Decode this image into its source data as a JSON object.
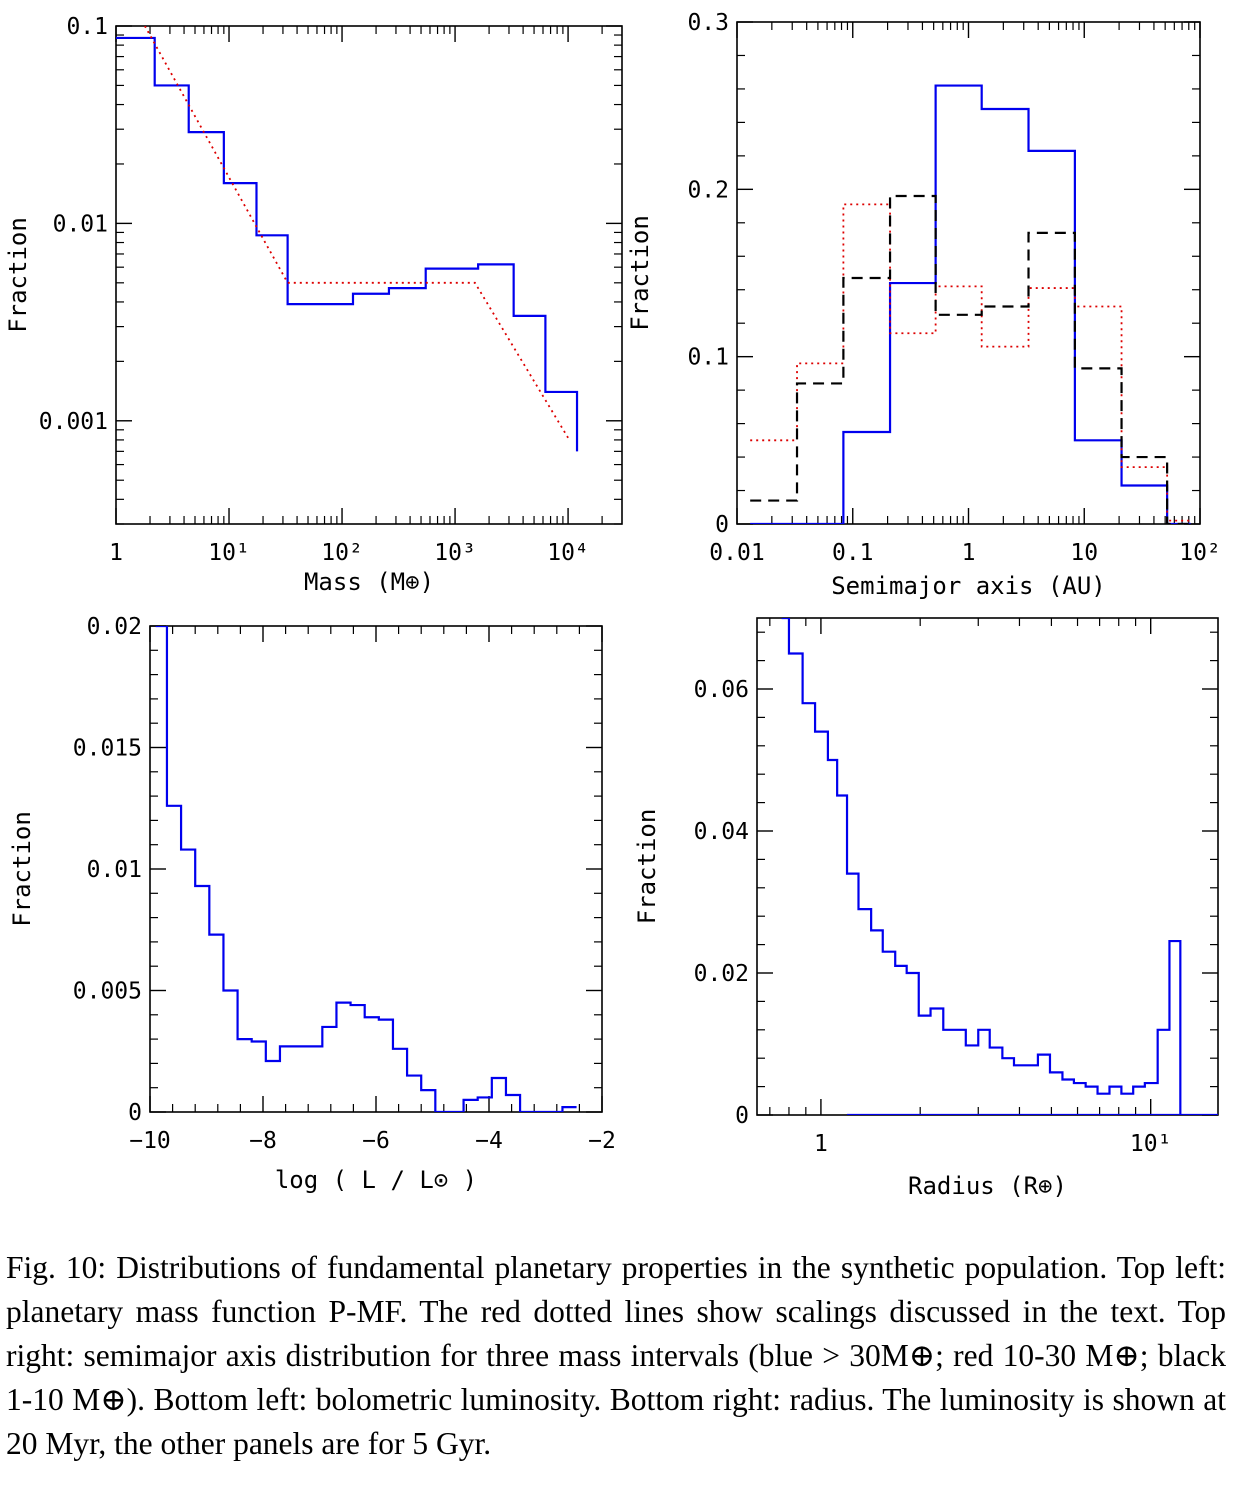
{
  "caption": "Fig. 10: Distributions of fundamental planetary properties in the synthetic population. Top left: planetary mass function P-MF. The red dotted lines show scalings discussed in the text. Top right: semimajor axis distribution for three mass intervals (blue > 30M⊕; red 10-30 M⊕; black 1-10 M⊕). Bottom left: bolometric luminosity. Bottom right: radius. The luminosity is shown at 20 Myr, the other panels are for 5 Gyr.",
  "colors": {
    "blue": "#0000ee",
    "red": "#dd0000",
    "black": "#000000"
  },
  "chart_data": [
    {
      "id": "mass",
      "type": "line",
      "title": "",
      "xlabel": "Mass (M⊕)",
      "ylabel": "Fraction",
      "xscale": "log",
      "yscale": "log",
      "xlim": [
        1,
        30000
      ],
      "ylim": [
        0.0003,
        0.1
      ],
      "xticks": [
        {
          "v": 1,
          "t": "1"
        },
        {
          "v": 10,
          "t": "10¹"
        },
        {
          "v": 100,
          "t": "10²"
        },
        {
          "v": 1000,
          "t": "10³"
        },
        {
          "v": 10000,
          "t": "10⁴"
        }
      ],
      "yticks": [
        {
          "v": 0.1,
          "t": "0.1"
        },
        {
          "v": 0.01,
          "t": "0.01"
        },
        {
          "v": 0.001,
          "t": "0.001"
        }
      ],
      "series": [
        {
          "style": "solid",
          "color": "blue",
          "kind": "step",
          "edges": [
            1,
            2.2,
            4.4,
            9,
            17.5,
            33,
            125,
            260,
            550,
            1600,
            3300,
            6300,
            12000
          ],
          "values": [
            0.087,
            0.05,
            0.029,
            0.016,
            0.0087,
            0.0039,
            0.0044,
            0.0047,
            0.0059,
            0.0062,
            0.0034,
            0.0014,
            0.0007
          ],
          "drop_to": 0.0003
        },
        {
          "style": "dotted",
          "color": "red",
          "kind": "line",
          "points": [
            [
              1.8,
              0.1
            ],
            [
              33,
              0.005
            ],
            [
              1500,
              0.005
            ],
            [
              10000,
              0.00082
            ]
          ]
        }
      ]
    },
    {
      "id": "semimajor",
      "type": "line",
      "title": "",
      "xlabel": "Semimajor axis (AU)",
      "ylabel": "Fraction",
      "xscale": "log",
      "yscale": "linear",
      "xlim": [
        0.01,
        100
      ],
      "ylim": [
        0,
        0.3
      ],
      "xticks": [
        {
          "v": 0.01,
          "t": "0.01"
        },
        {
          "v": 0.1,
          "t": "0.1"
        },
        {
          "v": 1,
          "t": "1"
        },
        {
          "v": 10,
          "t": "10"
        },
        {
          "v": 100,
          "t": "10²"
        }
      ],
      "yticks": [
        {
          "v": 0,
          "t": "0"
        },
        {
          "v": 0.1,
          "t": "0.1"
        },
        {
          "v": 0.2,
          "t": "0.2"
        },
        {
          "v": 0.3,
          "t": "0.3"
        }
      ],
      "series": [
        {
          "style": "solid",
          "color": "blue",
          "kind": "step",
          "edges": [
            0.013,
            0.033,
            0.083,
            0.21,
            0.52,
            1.3,
            3.3,
            8.3,
            21,
            52,
            83
          ],
          "values": [
            0,
            0,
            0.055,
            0.144,
            0.262,
            0.248,
            0.223,
            0.05,
            0.023,
            0,
            0
          ]
        },
        {
          "style": "dotted",
          "color": "red",
          "kind": "step",
          "edges": [
            0.013,
            0.033,
            0.083,
            0.21,
            0.52,
            1.3,
            3.3,
            8.3,
            21,
            52,
            83
          ],
          "values": [
            0.05,
            0.096,
            0.191,
            0.114,
            0.142,
            0.106,
            0.141,
            0.13,
            0.034,
            0.002,
            0.002
          ]
        },
        {
          "style": "dashed",
          "color": "black",
          "kind": "step",
          "edges": [
            0.013,
            0.033,
            0.083,
            0.21,
            0.52,
            1.3,
            3.3,
            8.3,
            21,
            52,
            83
          ],
          "values": [
            0.014,
            0.084,
            0.147,
            0.196,
            0.125,
            0.13,
            0.174,
            0.093,
            0.04,
            0,
            0
          ]
        }
      ]
    },
    {
      "id": "luminosity",
      "type": "line",
      "title": "",
      "xlabel": "log ( L / L⊙ )",
      "ylabel": "Fraction",
      "xscale": "linear",
      "yscale": "linear",
      "xlim": [
        -10,
        -2
      ],
      "ylim": [
        0,
        0.02
      ],
      "xticks": [
        {
          "v": -10,
          "t": "−10"
        },
        {
          "v": -8,
          "t": "−8"
        },
        {
          "v": -6,
          "t": "−6"
        },
        {
          "v": -4,
          "t": "−4"
        },
        {
          "v": -2,
          "t": "−2"
        }
      ],
      "yticks": [
        {
          "v": 0,
          "t": "0"
        },
        {
          "v": 0.005,
          "t": "0.005"
        },
        {
          "v": 0.01,
          "t": "0.01"
        },
        {
          "v": 0.015,
          "t": "0.015"
        },
        {
          "v": 0.02,
          "t": "0.02"
        }
      ],
      "series": [
        {
          "style": "solid",
          "color": "blue",
          "kind": "step",
          "edges": [
            -9.9,
            -9.7,
            -9.45,
            -9.2,
            -8.95,
            -8.7,
            -8.45,
            -8.2,
            -7.95,
            -7.7,
            -7.45,
            -7.2,
            -6.95,
            -6.7,
            -6.45,
            -6.2,
            -5.95,
            -5.7,
            -5.45,
            -5.2,
            -4.95,
            -4.7,
            -4.45,
            -4.2,
            -3.95,
            -3.7,
            -3.45,
            -3.2,
            -2.95,
            -2.7,
            -2.45
          ],
          "values": [
            0.02,
            0.0126,
            0.0108,
            0.0093,
            0.0073,
            0.005,
            0.003,
            0.0029,
            0.0021,
            0.0027,
            0.0027,
            0.0027,
            0.0035,
            0.0045,
            0.0044,
            0.0039,
            0.0038,
            0.0026,
            0.0015,
            0.0009,
            0,
            0,
            0.0005,
            0.0006,
            0.0014,
            0.0007,
            0,
            0,
            0,
            0.0002
          ]
        }
      ]
    },
    {
      "id": "radius",
      "type": "line",
      "title": "",
      "xlabel": "Radius (R⊕)",
      "ylabel": "Fraction",
      "xscale": "log",
      "yscale": "linear",
      "xlim": [
        0.64,
        16
      ],
      "ylim": [
        0,
        0.07
      ],
      "xticks": [
        {
          "v": 1,
          "t": "1"
        },
        {
          "v": 10,
          "t": "10¹"
        }
      ],
      "yticks": [
        {
          "v": 0,
          "t": "0"
        },
        {
          "v": 0.02,
          "t": "0.02"
        },
        {
          "v": 0.04,
          "t": "0.04"
        },
        {
          "v": 0.06,
          "t": "0.06"
        }
      ],
      "series": [
        {
          "style": "solid",
          "color": "blue",
          "kind": "step",
          "edges": [
            0.76,
            0.8,
            0.88,
            0.96,
            1.05,
            1.12,
            1.2,
            1.3,
            1.42,
            1.54,
            1.68,
            1.82,
            1.98,
            2.15,
            2.35,
            2.55,
            2.75,
            3.0,
            3.25,
            3.55,
            3.85,
            4.2,
            4.55,
            4.95,
            5.4,
            5.85,
            6.35,
            6.9,
            7.5,
            8.15,
            8.85,
            9.6,
            10.5,
            11.4,
            12.3
          ],
          "values": [
            0.07,
            0.065,
            0.058,
            0.054,
            0.05,
            0.045,
            0.034,
            0.029,
            0.026,
            0.023,
            0.021,
            0.02,
            0.014,
            0.015,
            0.012,
            0.012,
            0.0098,
            0.012,
            0.0095,
            0.008,
            0.007,
            0.007,
            0.0085,
            0.006,
            0.005,
            0.0045,
            0.004,
            0.003,
            0.004,
            0.003,
            0.004,
            0.0045,
            0.012,
            0.0245
          ],
          "drop_to": 0
        },
        {
          "style": "solid",
          "color": "blue",
          "kind": "line",
          "points": [
            [
              1.2,
              0
            ],
            [
              12.3,
              0
            ],
            [
              16,
              0
            ]
          ]
        }
      ]
    }
  ]
}
